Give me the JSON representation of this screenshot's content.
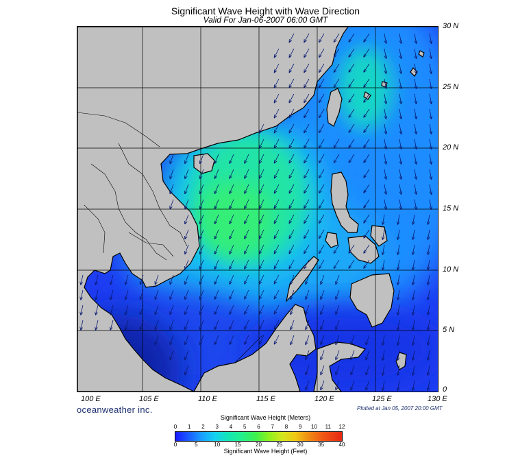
{
  "title": "Significant Wave Height with Wave Direction",
  "subtitle": "Valid For Jan-06-2007 06:00 GMT",
  "lat_labels": [
    "30 N",
    "25 N",
    "20 N",
    "15 N",
    "10 N",
    "5 N",
    "0"
  ],
  "lon_labels": [
    "100 E",
    "105 E",
    "110 E",
    "115 E",
    "120 E",
    "125 E",
    "130 E"
  ],
  "brand": "oceanweather inc.",
  "plotted": "Plotted at Jan 05, 2007 20:00 GMT",
  "colorbar": {
    "meters_title": "Significant Wave Height (Meters)",
    "feet_title": "Significant Wave Height (Feet)",
    "meters_ticks": [
      "0",
      "1",
      "2",
      "3",
      "4",
      "5",
      "6",
      "7",
      "8",
      "9",
      "10",
      "11",
      "12"
    ],
    "feet_ticks": [
      "0",
      "5",
      "10",
      "15",
      "20",
      "25",
      "30",
      "35",
      "40"
    ]
  },
  "map": {
    "lon_range": [
      99,
      130
    ],
    "lat_range": [
      0,
      30
    ],
    "grid_step_degrees": 5,
    "land_color": "#c0c0c0",
    "wave_height_scale_min_m": 0,
    "wave_height_scale_max_m": 12,
    "arrow_color": "#0a1a70"
  }
}
